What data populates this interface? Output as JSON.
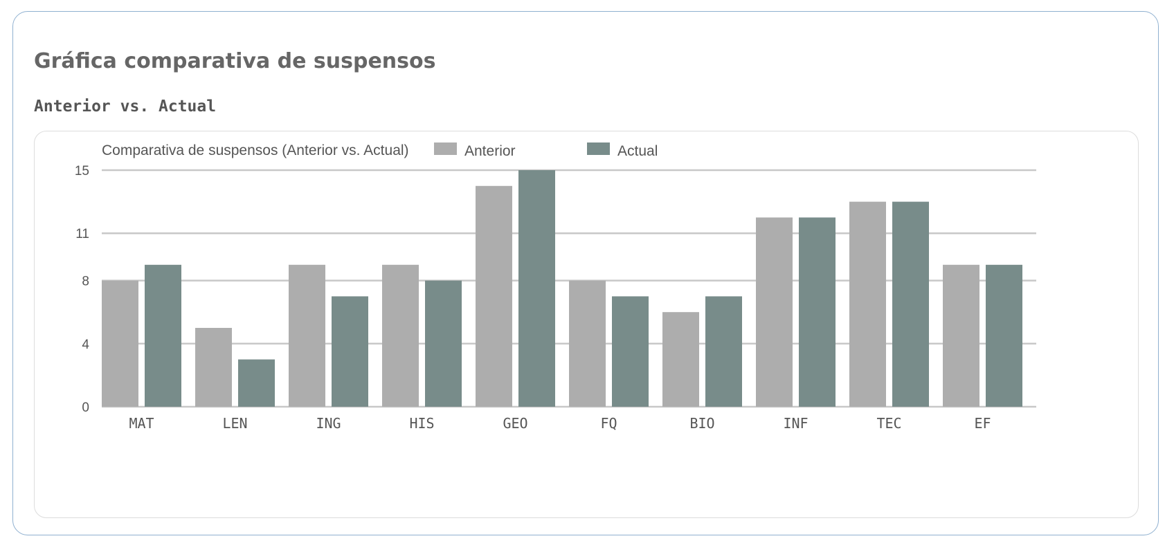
{
  "header": {
    "title": "Gráfica comparativa de suspensos",
    "subtitle": "Anterior vs. Actual"
  },
  "chart_data": {
    "type": "bar",
    "title": "Comparativa de suspensos (Anterior vs. Actual)",
    "xlabel": "",
    "ylabel": "",
    "categories": [
      "MAT",
      "LEN",
      "ING",
      "HIS",
      "GEO",
      "FQ",
      "BIO",
      "INF",
      "TEC",
      "EF"
    ],
    "series": [
      {
        "name": "Anterior",
        "color": "#adadad",
        "values": [
          8,
          5,
          9,
          9,
          14,
          8,
          6,
          12,
          13,
          9
        ]
      },
      {
        "name": "Actual",
        "color": "#788c8a",
        "values": [
          9,
          3,
          7,
          8,
          15,
          7,
          7,
          12,
          13,
          9
        ]
      }
    ],
    "yticks": [
      0,
      4,
      8,
      11,
      15
    ],
    "ylim": [
      0,
      15
    ],
    "grid": true,
    "legend": "top"
  }
}
